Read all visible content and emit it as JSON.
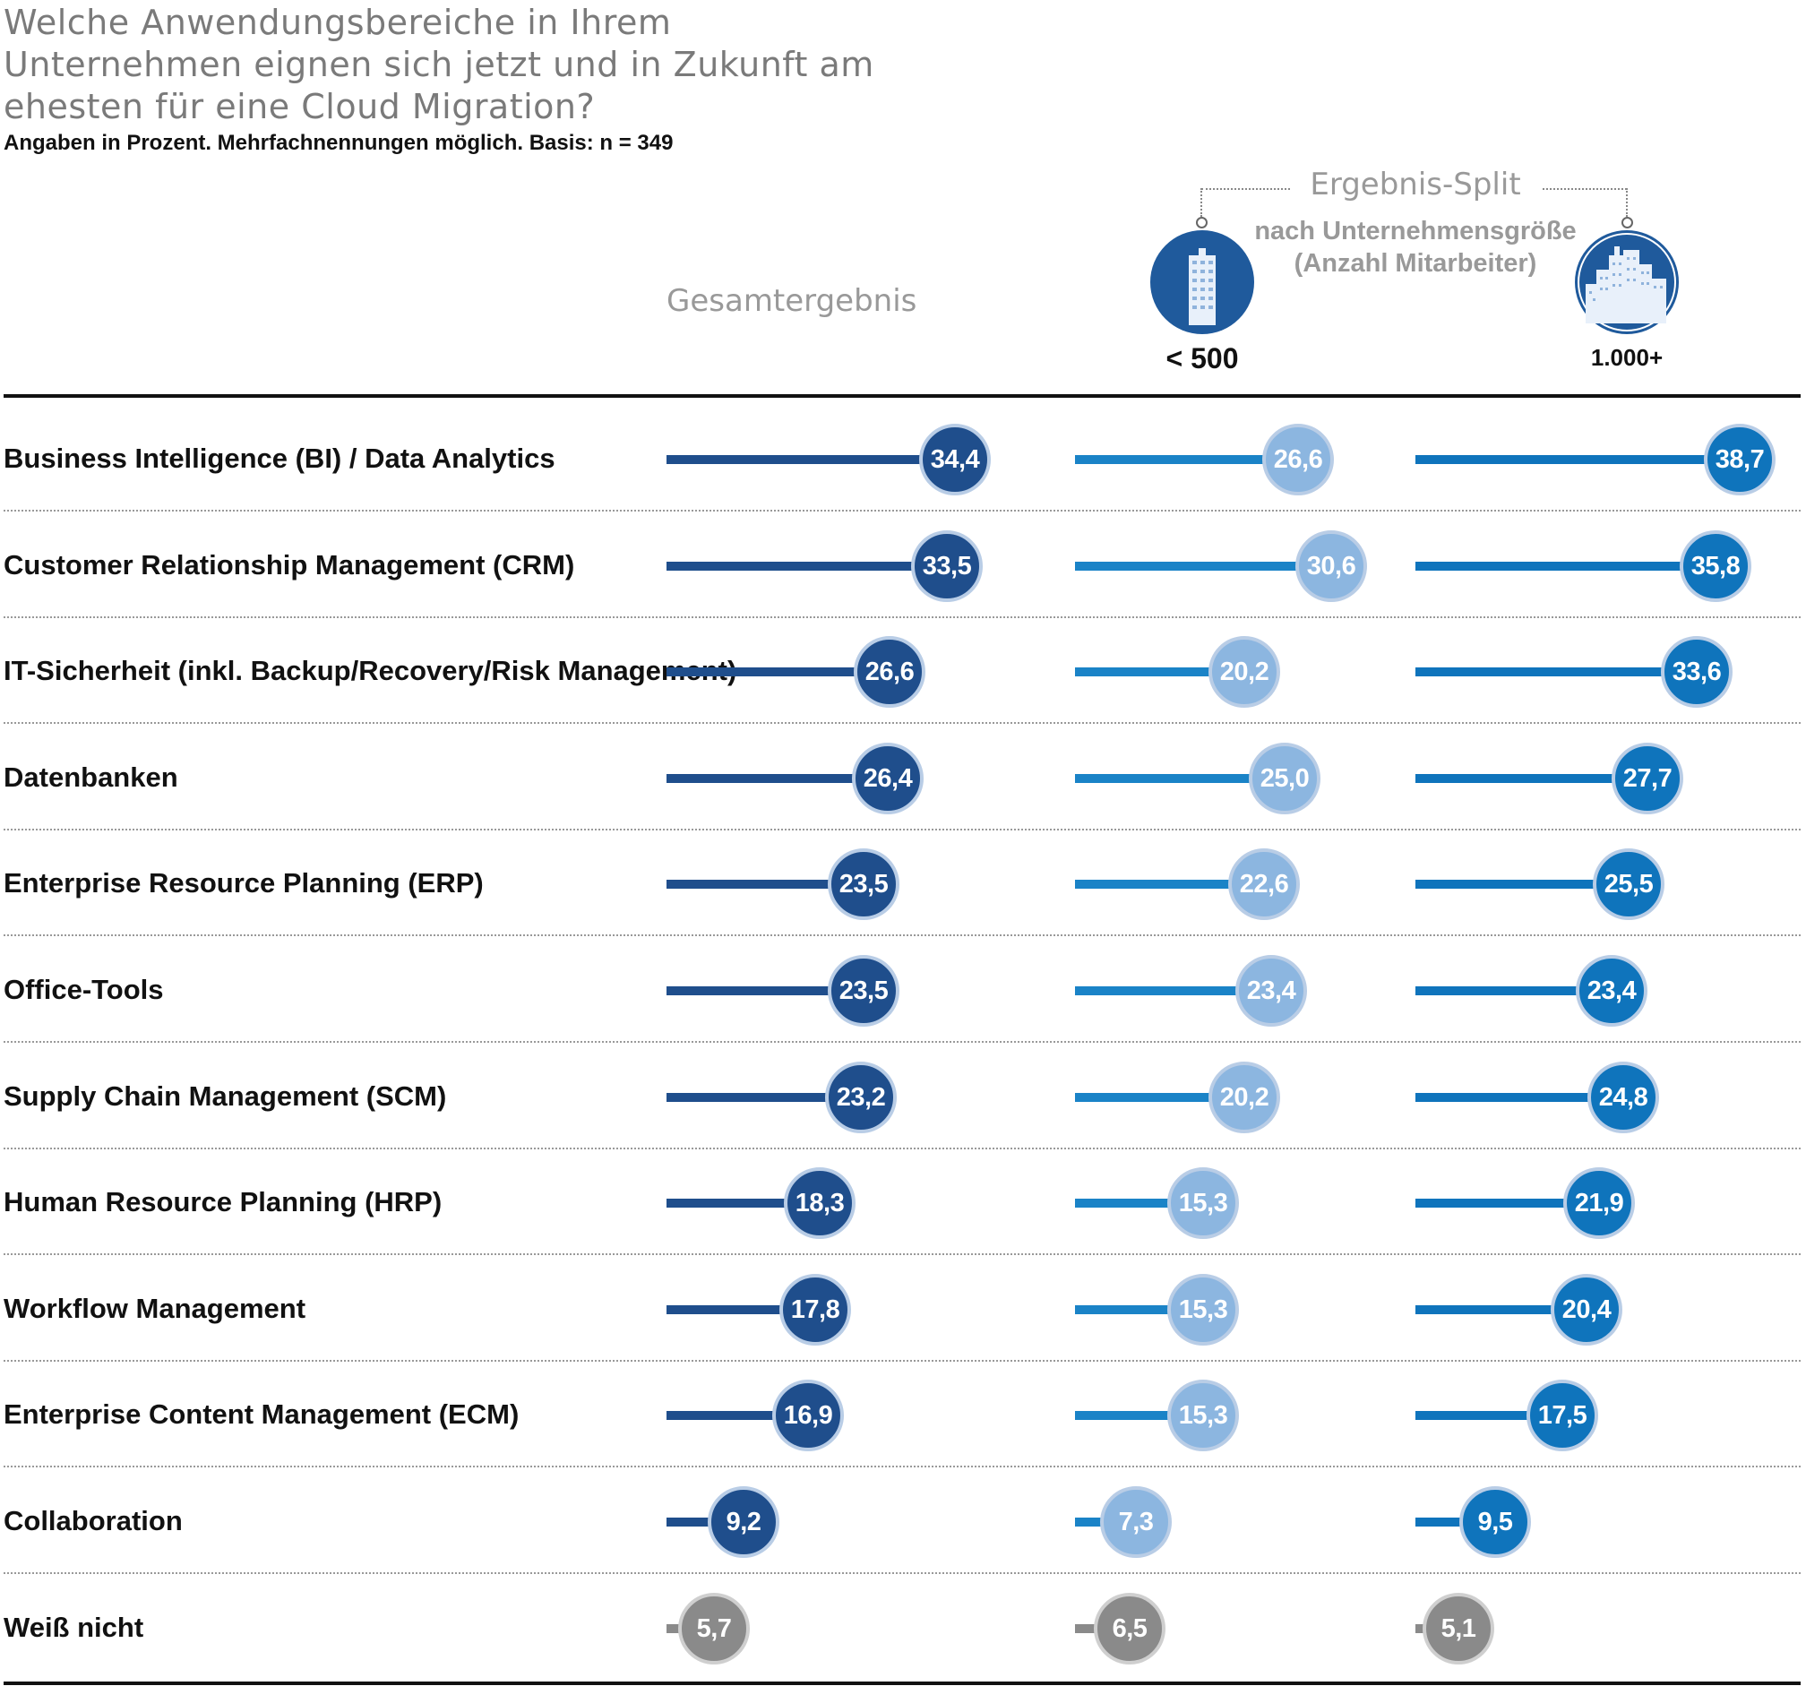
{
  "title": "Welche Anwendungsbereiche in Ihrem Unternehmen eignen sich jetzt und in Zukunft am ehesten für eine Cloud Migration?",
  "subtitle": "Angaben in Prozent. Mehrfachnennungen möglich. Basis: n = 349",
  "header": {
    "total": "Gesamtergebnis",
    "split_title": "Ergebnis-Split",
    "split_subtitle_line1": "nach Unternehmensgröße",
    "split_subtitle_line2": "(Anzahl Mitarbeiter)",
    "small_label": "< 500",
    "large_label": "1.000+"
  },
  "colors": {
    "total": "#1f4e8c",
    "small_bar": "#1a83c7",
    "small_dot": "#8cb6e0",
    "large": "#0f74bc",
    "unknown": "#8a8a8a"
  },
  "chart_data": {
    "type": "bar",
    "orientation": "horizontal",
    "unit": "%",
    "categories": [
      "Business Intelligence (BI) / Data Analytics",
      "Customer Relationship Management (CRM)",
      "IT-Sicherheit (inkl. Backup/Recovery/Risk Management)",
      "Datenbanken",
      "Enterprise Resource Planning (ERP)",
      "Office-Tools",
      "Supply Chain Management (SCM)",
      "Human Resource Planning (HRP)",
      "Workflow Management",
      "Enterprise Content Management (ECM)",
      "Collaboration",
      "Weiß nicht"
    ],
    "series": [
      {
        "name": "Gesamtergebnis",
        "values": [
          34.4,
          33.5,
          26.6,
          26.4,
          23.5,
          23.5,
          23.2,
          18.3,
          17.8,
          16.9,
          9.2,
          5.7
        ],
        "labels": [
          "34,4",
          "33,5",
          "26,6",
          "26,4",
          "23,5",
          "23,5",
          "23,2",
          "18,3",
          "17,8",
          "16,9",
          "9,2",
          "5,7"
        ]
      },
      {
        "name": "< 500",
        "values": [
          26.6,
          30.6,
          20.2,
          25.0,
          22.6,
          23.4,
          20.2,
          15.3,
          15.3,
          15.3,
          7.3,
          6.5
        ],
        "labels": [
          "26,6",
          "30,6",
          "20,2",
          "25,0",
          "22,6",
          "23,4",
          "20,2",
          "15,3",
          "15,3",
          "15,3",
          "7,3",
          "6,5"
        ]
      },
      {
        "name": "1.000+",
        "values": [
          38.7,
          35.8,
          33.6,
          27.7,
          25.5,
          23.4,
          24.8,
          21.9,
          20.4,
          17.5,
          9.5,
          5.1
        ],
        "labels": [
          "38,7",
          "35,8",
          "33,6",
          "27,7",
          "25,5",
          "23,4",
          "24,8",
          "21,9",
          "20,4",
          "17,5",
          "9,5",
          "5,1"
        ]
      }
    ]
  }
}
